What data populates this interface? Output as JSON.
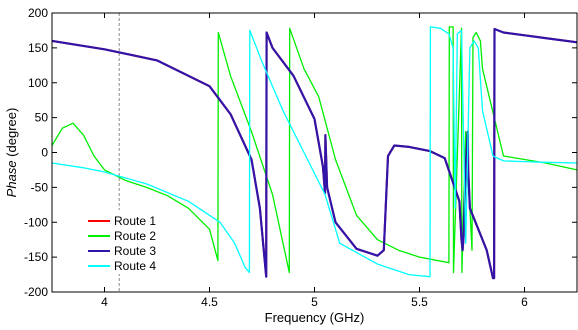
{
  "chart_data": {
    "type": "line",
    "xlabel": "Frequency (GHz)",
    "ylabel_italic": "Phase",
    "ylabel_rest": " (degree)",
    "xlim": [
      3.75,
      6.25
    ],
    "ylim": [
      -200,
      200
    ],
    "xticks": [
      4,
      4.5,
      5,
      5.5,
      6
    ],
    "xtick_labels": [
      "4",
      "4.5",
      "5",
      "5.5",
      "6"
    ],
    "yticks": [
      -200,
      -150,
      -100,
      -50,
      0,
      50,
      100,
      150,
      200
    ],
    "ytick_labels": [
      "-200",
      "-150",
      "-100",
      "-50",
      "0",
      "50",
      "100",
      "150",
      "200"
    ],
    "reference_line": {
      "x": 4.07,
      "style": "dashed",
      "color": "#888888"
    },
    "grid": false,
    "legend_position": "bottom-left",
    "series": [
      {
        "name": "Route 1",
        "color": "#ff0000",
        "x": [
          3.75,
          4.0,
          4.25,
          4.5,
          4.6,
          4.7,
          4.74,
          4.77,
          4.772,
          4.8,
          4.9,
          5.0,
          5.04,
          5.05,
          5.052,
          5.06,
          5.1,
          5.2,
          5.3,
          5.33,
          5.35,
          5.38,
          5.45,
          5.55,
          5.62,
          5.69,
          5.7,
          5.705,
          5.71,
          5.72,
          5.73,
          5.732,
          5.74,
          5.78,
          5.82,
          5.85,
          5.855,
          5.857,
          5.9,
          6.0,
          6.1,
          6.25
        ],
        "y": [
          160,
          148,
          132,
          95,
          55,
          -10,
          -80,
          -178,
          172,
          150,
          110,
          48,
          -20,
          -58,
          25,
          -50,
          -100,
          -138,
          -148,
          -140,
          -5,
          10,
          8,
          2,
          -8,
          -70,
          -125,
          -140,
          -120,
          -20,
          30,
          -25,
          -80,
          -110,
          -140,
          -180,
          -180,
          177,
          172,
          168,
          164,
          158
        ]
      },
      {
        "name": "Route 2",
        "color": "#00ee00",
        "x": [
          3.75,
          3.8,
          3.85,
          3.9,
          3.95,
          4.0,
          4.1,
          4.2,
          4.3,
          4.4,
          4.5,
          4.54,
          4.542,
          4.6,
          4.7,
          4.8,
          4.88,
          4.882,
          4.95,
          5.02,
          5.1,
          5.2,
          5.3,
          5.4,
          5.5,
          5.64,
          5.642,
          5.66,
          5.662,
          5.7,
          5.702,
          5.72,
          5.74,
          5.75,
          5.755,
          5.77,
          5.79,
          5.8,
          5.9,
          6.0,
          6.1,
          6.25
        ],
        "y": [
          10,
          35,
          42,
          25,
          -5,
          -25,
          -40,
          -50,
          -62,
          -80,
          -110,
          -155,
          172,
          110,
          30,
          -60,
          -172,
          178,
          120,
          80,
          -10,
          -90,
          -125,
          -140,
          -150,
          -158,
          180,
          180,
          -172,
          178,
          -172,
          30,
          -80,
          -140,
          165,
          172,
          160,
          120,
          -5,
          -10,
          -15,
          -25
        ]
      },
      {
        "name": "Route 3",
        "color": "#3314a8",
        "x": [
          3.75,
          4.0,
          4.25,
          4.5,
          4.6,
          4.7,
          4.74,
          4.77,
          4.772,
          4.8,
          4.9,
          5.0,
          5.04,
          5.05,
          5.052,
          5.06,
          5.1,
          5.2,
          5.3,
          5.33,
          5.35,
          5.38,
          5.45,
          5.55,
          5.62,
          5.69,
          5.7,
          5.705,
          5.71,
          5.72,
          5.73,
          5.732,
          5.74,
          5.78,
          5.82,
          5.85,
          5.855,
          5.857,
          5.9,
          6.0,
          6.1,
          6.25
        ],
        "y": [
          160,
          148,
          132,
          95,
          55,
          -10,
          -80,
          -178,
          172,
          150,
          110,
          48,
          -20,
          -58,
          25,
          -50,
          -100,
          -138,
          -148,
          -140,
          -5,
          10,
          8,
          2,
          -8,
          -70,
          -125,
          -140,
          -120,
          -20,
          30,
          -25,
          -80,
          -110,
          -140,
          -180,
          -180,
          177,
          172,
          168,
          164,
          158
        ]
      },
      {
        "name": "Route 4",
        "color": "#00ffff",
        "x": [
          3.75,
          3.9,
          4.0,
          4.2,
          4.4,
          4.55,
          4.62,
          4.67,
          4.69,
          4.692,
          4.75,
          4.85,
          4.95,
          5.05,
          5.1,
          5.12,
          5.3,
          5.45,
          5.55,
          5.552,
          5.6,
          5.64,
          5.66,
          5.67,
          5.68,
          5.7,
          5.72,
          5.74,
          5.76,
          5.78,
          5.8,
          5.85,
          5.9,
          6.0,
          6.1,
          6.25
        ],
        "y": [
          -15,
          -22,
          -28,
          -45,
          -70,
          -100,
          -130,
          -165,
          -172,
          175,
          130,
          60,
          0,
          -60,
          -110,
          -130,
          -160,
          -175,
          -178,
          180,
          178,
          170,
          150,
          -80,
          170,
          175,
          -130,
          150,
          160,
          150,
          60,
          -5,
          -12,
          -13,
          -14,
          -15
        ]
      }
    ]
  }
}
